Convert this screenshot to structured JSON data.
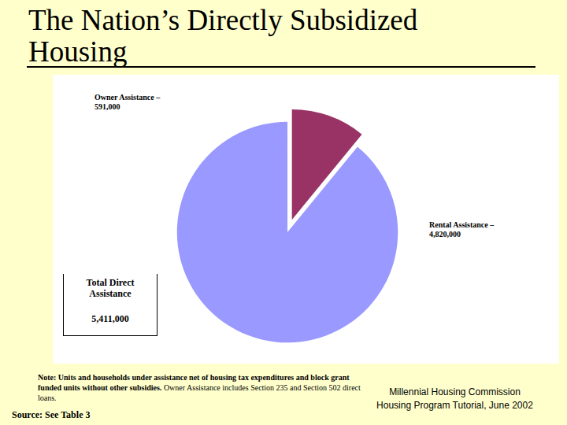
{
  "chart_data": {
    "type": "pie",
    "title": "The Nation’s Directly Subsidized Housing",
    "categories": [
      "Owner Assistance –",
      "Rental Assistance –"
    ],
    "values": [
      591000,
      4820000
    ],
    "value_labels": [
      "591,000",
      "4,820,000"
    ],
    "colors": [
      "#993366",
      "#9999ff"
    ],
    "data_labels": true,
    "total": {
      "label": "Total Direct Assistance",
      "value": 5411000
    },
    "note": {
      "bold": "Note: Units and households under assistance net of housing tax expenditures and block grant funded units without other subsidies.",
      "text": "Owner Assistance includes Section 235 and Section 502 direct loans."
    },
    "source": "Source: See Table 3",
    "credit": [
      "Millennial Housing Commission",
      "Housing Program Tutorial, June 2002"
    ]
  }
}
